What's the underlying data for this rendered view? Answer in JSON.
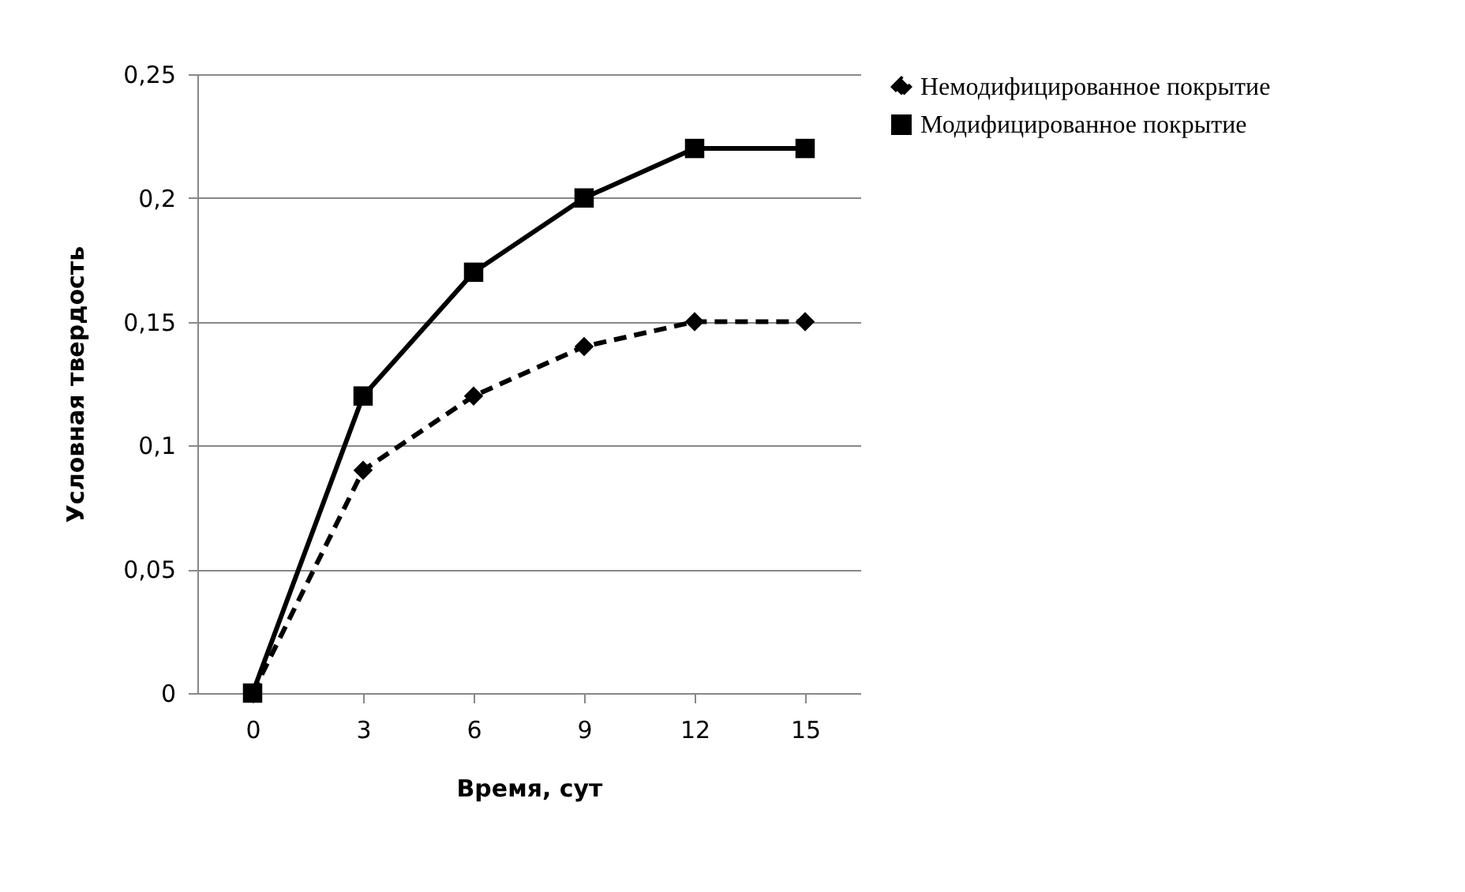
{
  "chart_data": {
    "type": "line",
    "xlabel": "Время, сут",
    "ylabel": "Условная твердость",
    "categories": [
      "0",
      "3",
      "6",
      "9",
      "12",
      "15"
    ],
    "series": [
      {
        "name": "Немодифицированное покрытие",
        "color": "#000000",
        "marker": "diamond",
        "line_style": "dashed",
        "values": [
          0,
          0.09,
          0.12,
          0.14,
          0.15,
          0.15
        ]
      },
      {
        "name": "Модифицированное покрытие",
        "color": "#000000",
        "marker": "square",
        "line_style": "solid",
        "values": [
          0,
          0.12,
          0.17,
          0.2,
          0.22,
          0.22
        ]
      }
    ],
    "ylim": [
      0,
      0.25
    ],
    "yticks": [
      0,
      {
        "value": 0.05,
        "label": "0,05"
      },
      {
        "value": 0.1,
        "label": "0,1"
      },
      {
        "value": 0.15,
        "label": "0,15"
      },
      {
        "value": 0.2,
        "label": "0,2"
      },
      {
        "value": 0.25,
        "label": "0,25"
      }
    ],
    "grid": "y",
    "legend": "right"
  }
}
